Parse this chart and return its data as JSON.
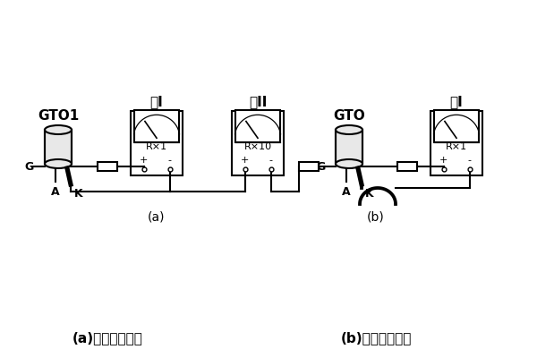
{
  "bg_color": "#ffffff",
  "line_color": "#000000",
  "title_a": "GTO1",
  "title_b": "GTO",
  "meter_a1": "表I",
  "meter_ab": "表II",
  "meter_b1": "表I",
  "range_a1": "R×1",
  "range_ab": "R×10",
  "range_b1": "R×1",
  "label_a": "(a)",
  "label_b": "(b)",
  "caption_a": "(a)检查触发能力",
  "caption_b": "(b)检查关断能力",
  "fig_width": 6.0,
  "fig_height": 4.0,
  "dpi": 100
}
